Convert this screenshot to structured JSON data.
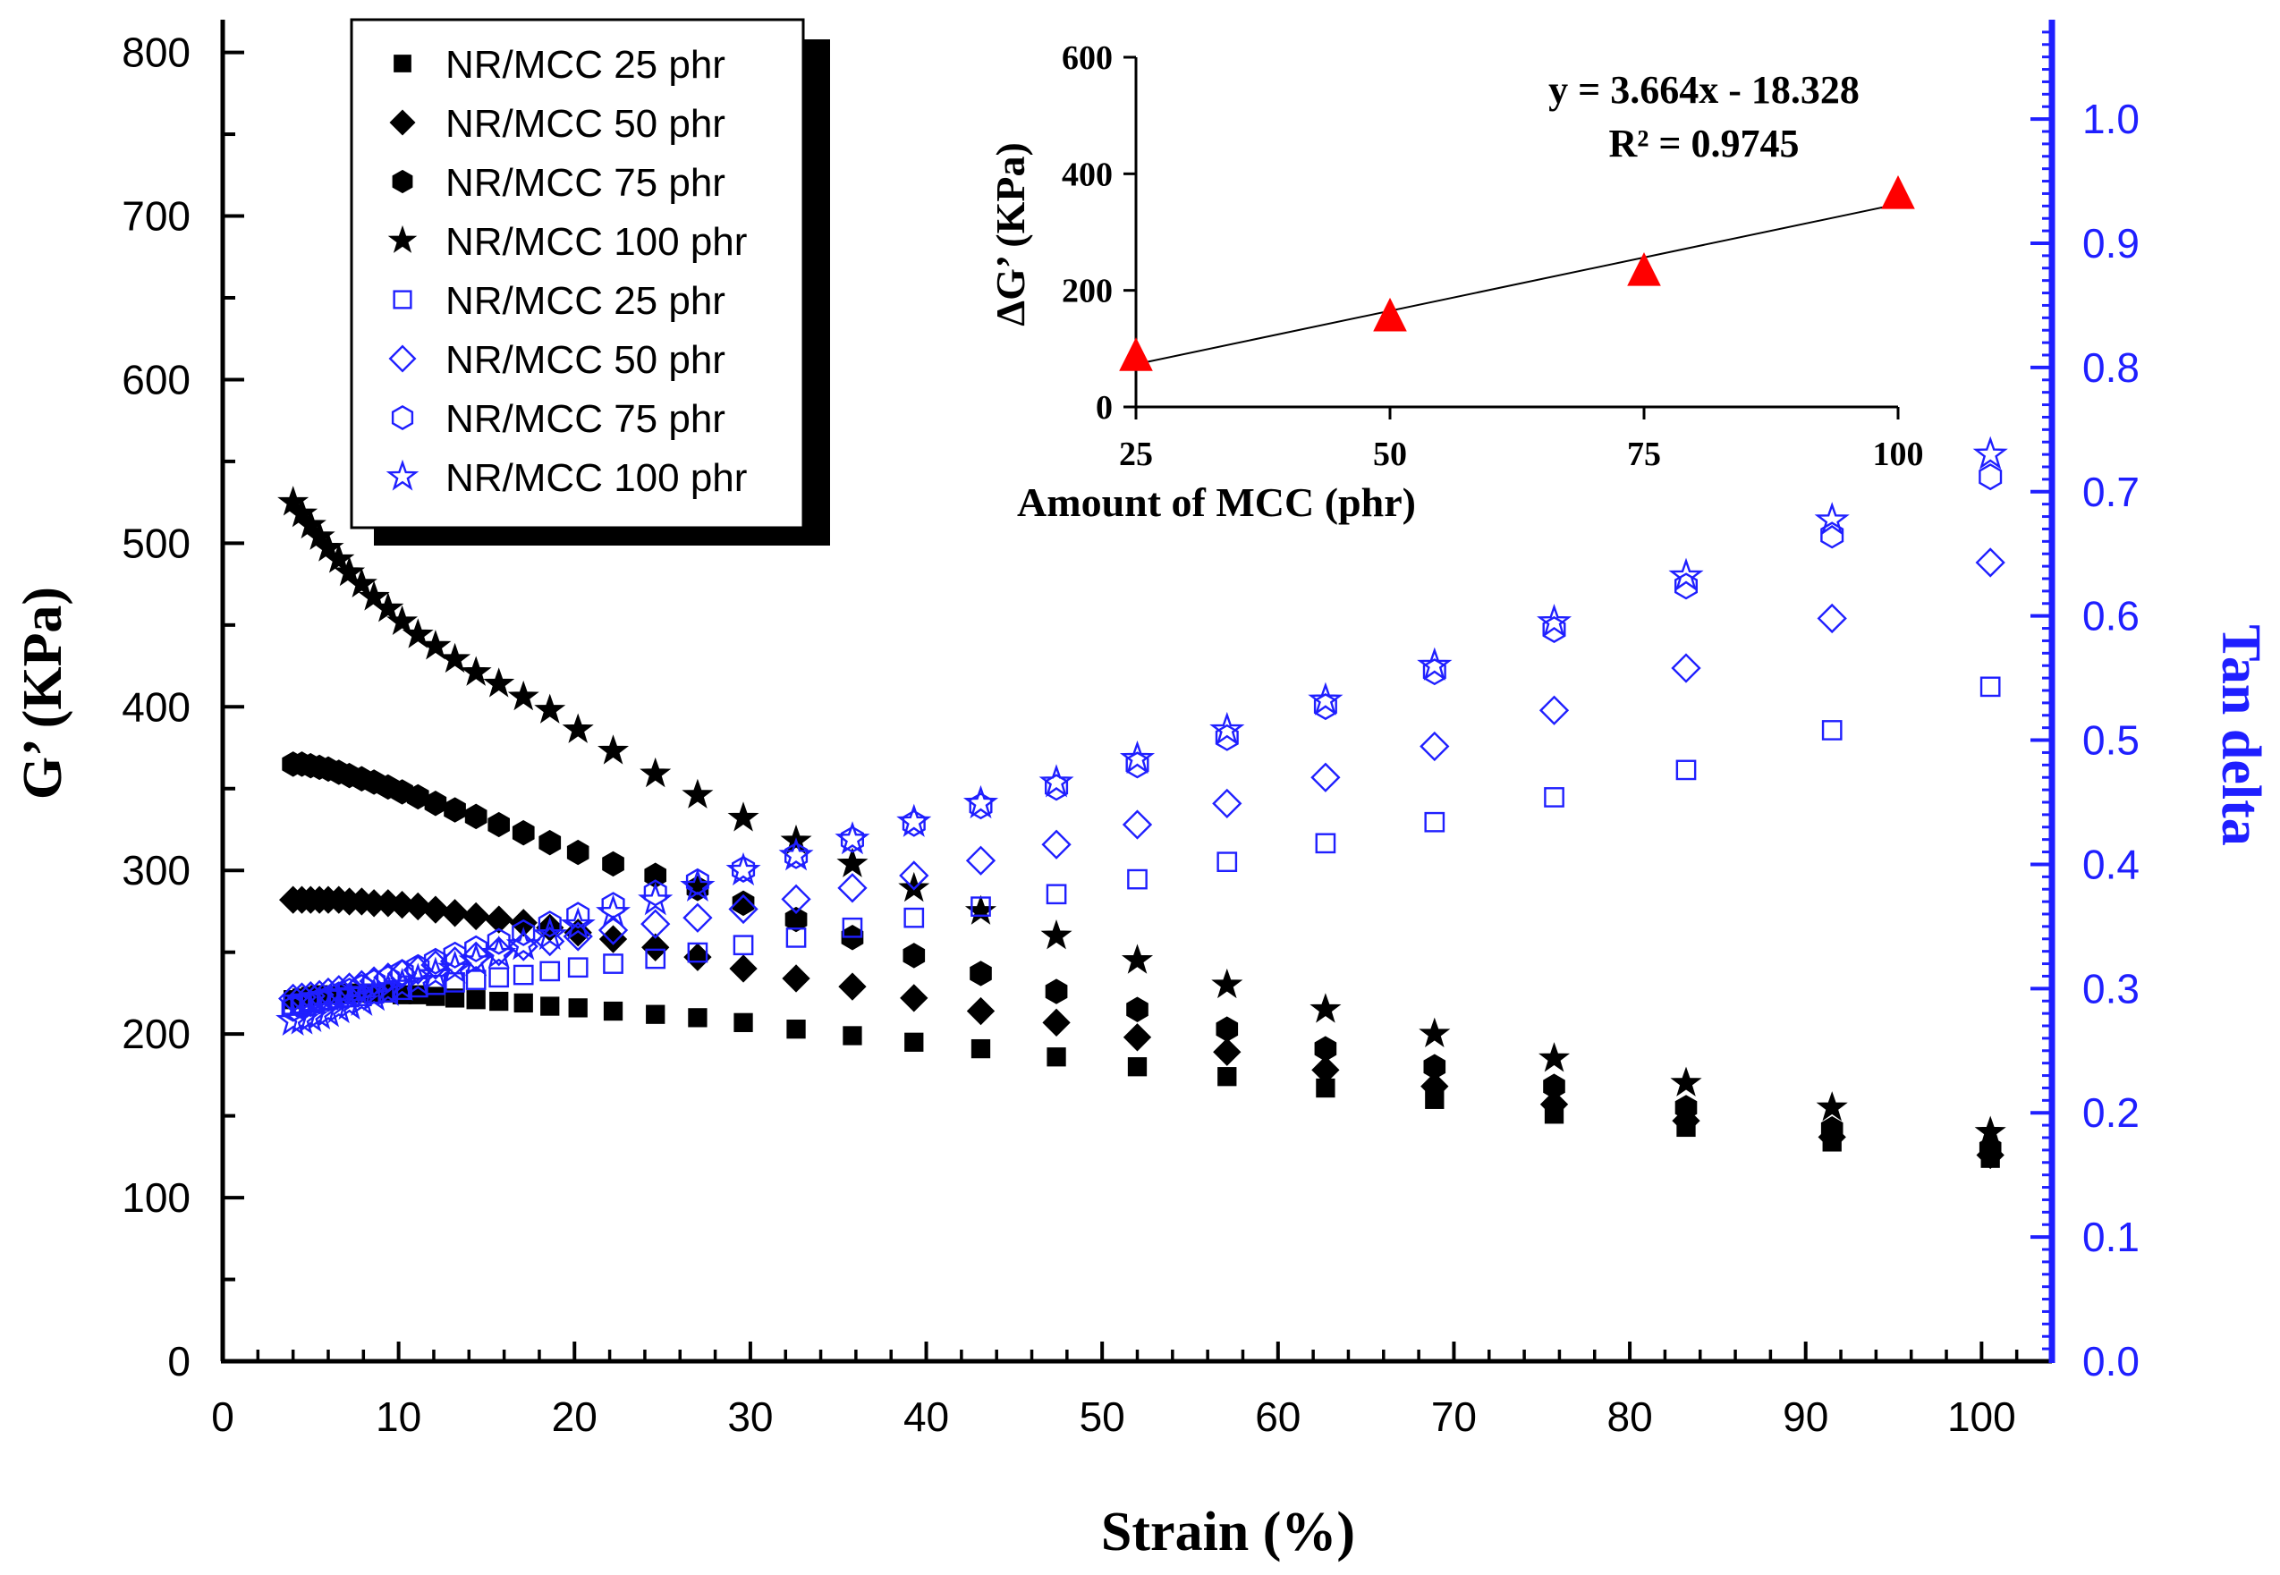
{
  "chart_data": [
    {
      "type": "scatter",
      "xlabel": "Strain (%)",
      "ylabel": "G’ (KPa)",
      "y2label": "Tan delta",
      "xlim": [
        0,
        104
      ],
      "ylim": [
        0,
        820
      ],
      "y2lim": [
        0,
        1.08
      ],
      "xticks": [
        0,
        10,
        20,
        30,
        40,
        50,
        60,
        70,
        80,
        90,
        100
      ],
      "yticks": [
        0,
        100,
        200,
        300,
        400,
        500,
        600,
        700,
        800
      ],
      "y2ticks": [
        0.0,
        0.1,
        0.2,
        0.3,
        0.4,
        0.5,
        0.6,
        0.7,
        0.8,
        0.9,
        1.0
      ],
      "y2tick_labels": [
        "0.0",
        "0.1",
        "0.2",
        "0.3",
        "0.4",
        "0.5",
        "0.6",
        "0.7",
        "0.8",
        "0.9",
        "1.0"
      ],
      "colors": {
        "black": "#000000",
        "blue": "#1f1fff"
      },
      "x": [
        4.0,
        4.5,
        5.0,
        5.5,
        6.0,
        6.6,
        7.2,
        7.9,
        8.6,
        9.4,
        10.2,
        11.1,
        12.1,
        13.2,
        14.4,
        15.7,
        17.1,
        18.6,
        20.2,
        22.2,
        24.6,
        27.0,
        29.6,
        32.6,
        35.8,
        39.3,
        43.1,
        47.4,
        52.0,
        57.1,
        62.7,
        68.9,
        75.7,
        83.2,
        91.5,
        100.5
      ],
      "legend": [
        "NR/MCC 25 phr",
        "NR/MCC 50 phr",
        "NR/MCC 75 phr",
        "NR/MCC 100 phr",
        "NR/MCC 25 phr",
        "NR/MCC 50 phr",
        "NR/MCC 75 phr",
        "NR/MCC 100 phr"
      ],
      "series": [
        {
          "name": "NR/MCC 25 phr",
          "axis": "G'",
          "marker": "square-filled",
          "values": [
            221,
            222,
            223,
            224,
            224,
            224,
            225,
            225,
            225,
            225,
            224,
            224,
            223,
            222,
            221,
            220,
            219,
            217,
            216,
            214,
            212,
            210,
            207,
            203,
            199,
            195,
            191,
            186,
            180,
            174,
            167,
            160,
            151,
            143,
            134,
            124
          ]
        },
        {
          "name": "NR/MCC 50 phr",
          "axis": "G'",
          "marker": "diamond-filled",
          "values": [
            282,
            282,
            282,
            282,
            282,
            282,
            281,
            281,
            280,
            280,
            279,
            278,
            276,
            274,
            272,
            270,
            268,
            265,
            262,
            258,
            253,
            247,
            240,
            234,
            229,
            222,
            214,
            207,
            198,
            189,
            178,
            168,
            157,
            147,
            137,
            126
          ]
        },
        {
          "name": "NR/MCC 75 phr",
          "axis": "G'",
          "marker": "hexagon-filled",
          "values": [
            365,
            365,
            364,
            363,
            362,
            360,
            358,
            356,
            354,
            351,
            348,
            345,
            341,
            337,
            333,
            328,
            323,
            317,
            311,
            304,
            297,
            289,
            280,
            270,
            259,
            248,
            237,
            226,
            215,
            203,
            191,
            180,
            168,
            155,
            142,
            130
          ]
        },
        {
          "name": "NR/MCC 100 phr",
          "axis": "G'",
          "marker": "star-filled",
          "values": [
            525,
            518,
            511,
            504,
            497,
            490,
            482,
            475,
            467,
            460,
            452,
            444,
            437,
            429,
            421,
            414,
            406,
            398,
            386,
            373,
            359,
            346,
            332,
            318,
            304,
            289,
            275,
            260,
            245,
            230,
            215,
            200,
            185,
            170,
            155,
            140
          ]
        },
        {
          "name": "NR/MCC 25 phr",
          "axis": "Tan delta",
          "marker": "square-open",
          "values": [
            0.287,
            0.288,
            0.289,
            0.29,
            0.291,
            0.292,
            0.293,
            0.294,
            0.296,
            0.297,
            0.299,
            0.301,
            0.303,
            0.305,
            0.307,
            0.309,
            0.311,
            0.314,
            0.317,
            0.32,
            0.324,
            0.329,
            0.335,
            0.341,
            0.349,
            0.357,
            0.366,
            0.376,
            0.388,
            0.402,
            0.417,
            0.434,
            0.454,
            0.476,
            0.508,
            0.543
          ]
        },
        {
          "name": "NR/MCC 50 phr",
          "axis": "Tan delta",
          "marker": "diamond-open",
          "values": [
            0.292,
            0.293,
            0.294,
            0.295,
            0.297,
            0.299,
            0.301,
            0.303,
            0.306,
            0.309,
            0.312,
            0.315,
            0.319,
            0.322,
            0.326,
            0.33,
            0.334,
            0.338,
            0.342,
            0.347,
            0.352,
            0.357,
            0.364,
            0.372,
            0.381,
            0.391,
            0.403,
            0.416,
            0.432,
            0.449,
            0.47,
            0.495,
            0.524,
            0.558,
            0.598,
            0.643
          ]
        },
        {
          "name": "NR/MCC 75 phr",
          "axis": "Tan delta",
          "marker": "hexagon-open",
          "values": [
            0.284,
            0.286,
            0.288,
            0.29,
            0.292,
            0.295,
            0.298,
            0.301,
            0.305,
            0.308,
            0.313,
            0.317,
            0.322,
            0.327,
            0.332,
            0.338,
            0.345,
            0.352,
            0.359,
            0.367,
            0.377,
            0.386,
            0.396,
            0.407,
            0.42,
            0.433,
            0.447,
            0.462,
            0.48,
            0.502,
            0.527,
            0.555,
            0.589,
            0.624,
            0.665,
            0.712
          ]
        },
        {
          "name": "NR/MCC 100 phr",
          "axis": "Tan delta",
          "marker": "star-open",
          "values": [
            0.274,
            0.275,
            0.277,
            0.279,
            0.281,
            0.284,
            0.287,
            0.29,
            0.294,
            0.298,
            0.302,
            0.306,
            0.311,
            0.316,
            0.322,
            0.328,
            0.335,
            0.343,
            0.351,
            0.361,
            0.371,
            0.382,
            0.395,
            0.407,
            0.42,
            0.434,
            0.449,
            0.466,
            0.485,
            0.508,
            0.532,
            0.56,
            0.595,
            0.632,
            0.677,
            0.73
          ]
        }
      ]
    },
    {
      "type": "scatter",
      "name": "inset",
      "xlabel": "Amount of MCC (phr)",
      "ylabel": "ΔG’ (KPa)",
      "xlim": [
        25,
        100
      ],
      "ylim": [
        0,
        600
      ],
      "xticks": [
        25,
        50,
        75,
        100
      ],
      "yticks": [
        0,
        200,
        400,
        600
      ],
      "x": [
        25,
        50,
        75,
        100
      ],
      "values": [
        87,
        155,
        233,
        365
      ],
      "marker": "triangle-filled",
      "marker_color": "#ff0000",
      "fit": {
        "slope": 3.664,
        "intercept": -18.328
      },
      "equation": "y = 3.664x - 18.328",
      "r2_text": "R² = 0.9745"
    }
  ]
}
